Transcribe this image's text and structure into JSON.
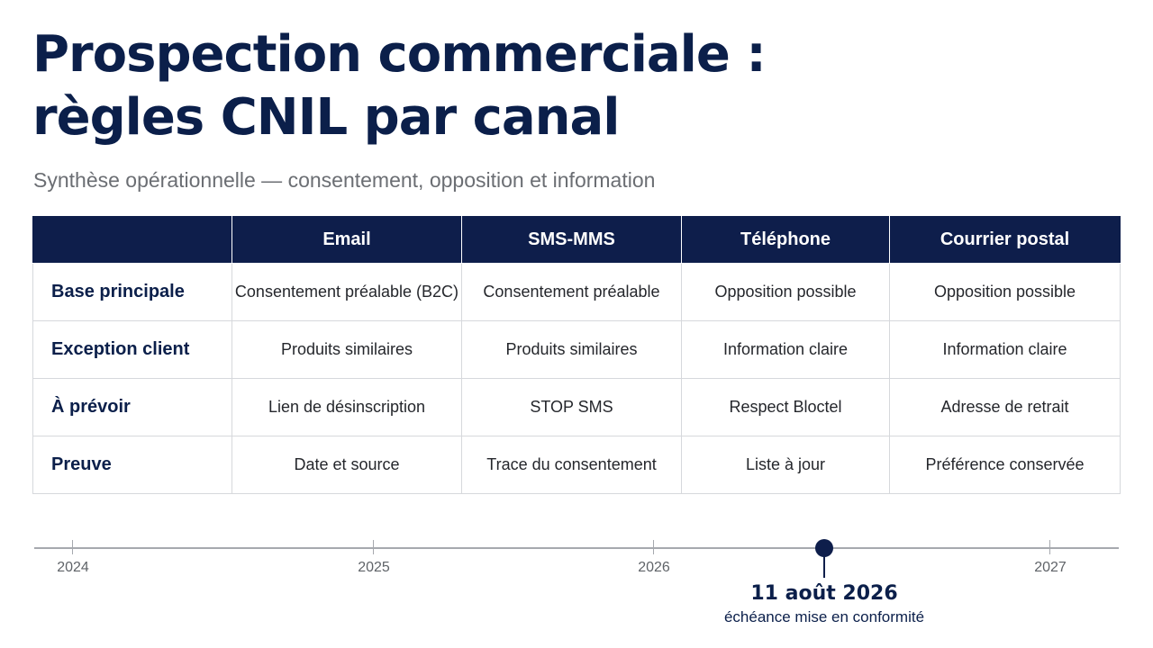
{
  "title": {
    "line1": "Prospection commerciale :",
    "line2": "règles CNIL par canal"
  },
  "subtitle": "Synthèse opérationnelle — consentement, opposition et information",
  "table": {
    "corner": "",
    "columns": [
      "Email",
      "SMS-MMS",
      "Téléphone",
      "Courrier postal"
    ],
    "rows": [
      {
        "label": "Base principale",
        "cells": [
          "Consentement préalable (B2C)",
          "Consentement préalable",
          "Opposition possible",
          "Opposition possible"
        ]
      },
      {
        "label": "Exception client",
        "cells": [
          "Produits similaires",
          "Produits similaires",
          "Information claire",
          "Information claire"
        ]
      },
      {
        "label": "À prévoir",
        "cells": [
          "Lien de désinscription",
          "STOP SMS",
          "Respect Bloctel",
          "Adresse de retrait"
        ]
      },
      {
        "label": "Preuve",
        "cells": [
          "Date et source",
          "Trace du consentement",
          "Liste à jour",
          "Préférence conservée"
        ]
      }
    ]
  },
  "timeline": {
    "years": [
      "2024",
      "2025",
      "2026",
      "2027"
    ],
    "milestone": {
      "date": "11 août 2026",
      "label": "échéance mise en conformité"
    }
  },
  "colors": {
    "navy": "#0e1e4b",
    "subtitle_gray": "#6b6e73",
    "grid_border": "#d6d8dc",
    "axis_gray": "#a6a9ae"
  }
}
